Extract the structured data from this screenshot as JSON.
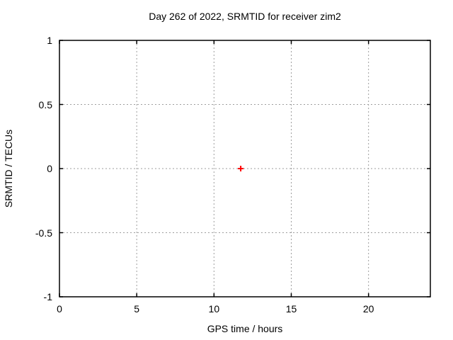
{
  "title": "Day 262 of 2022, SRMTID for receiver zim2",
  "chart_data": {
    "type": "scatter",
    "title": "Day 262 of 2022, SRMTID for receiver zim2",
    "xlabel": "GPS time / hours",
    "ylabel": "SRMTID / TECUs",
    "xlim": [
      0,
      24
    ],
    "ylim": [
      -1,
      1
    ],
    "xticks": [
      0,
      5,
      10,
      15,
      20
    ],
    "xticklabels": [
      "0",
      "5",
      "10",
      "15",
      "20"
    ],
    "yticks": [
      -1,
      -0.5,
      0,
      0.5,
      1
    ],
    "yticklabels": [
      "-1",
      "-0.5",
      "0",
      "0.5",
      "1"
    ],
    "grid": true,
    "legend": "none",
    "series": [
      {
        "name": "SRMTID",
        "marker": "plus",
        "color": "#ff0000",
        "points": [
          {
            "x": 11.73,
            "y": 0.0
          }
        ]
      }
    ],
    "colors": {
      "background": "#ffffff",
      "border": "#000000",
      "grid": "#9e9e9e",
      "text": "#000000",
      "marker": "#ff0000"
    }
  }
}
